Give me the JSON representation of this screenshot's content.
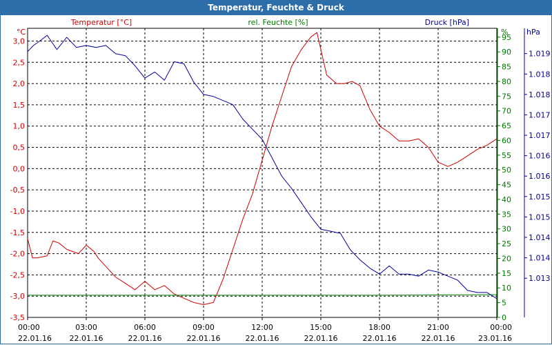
{
  "window": {
    "title": "Temperatur, Feuchte & Druck"
  },
  "chart_data": {
    "type": "line",
    "title": "Temperatur, Feuchte & Druck",
    "colors": {
      "temperature": "#cc0000",
      "humidity": "#007700",
      "pressure": "#000099",
      "grid": "#000000"
    },
    "x_ticks": [
      {
        "time": "00:00",
        "date": "22.01.16"
      },
      {
        "time": "03:00",
        "date": "22.01.16"
      },
      {
        "time": "06:00",
        "date": "22.01.16"
      },
      {
        "time": "09:00",
        "date": "22.01.16"
      },
      {
        "time": "12:00",
        "date": "22.01.16"
      },
      {
        "time": "15:00",
        "date": "22.01.16"
      },
      {
        "time": "18:00",
        "date": "22.01.16"
      },
      {
        "time": "21:00",
        "date": "22.01.16"
      },
      {
        "time": "00:00",
        "date": "23.01.16"
      }
    ],
    "xlim": [
      0,
      24
    ],
    "axes": {
      "temperature": {
        "label": "Temperatur [°C]",
        "unit": "°C",
        "ylim": [
          -3.5,
          3.3
        ],
        "ticks": [
          "3,0",
          "2,5",
          "2,0",
          "1,5",
          "1,0",
          "0,5",
          "0,0",
          "-0,5",
          "-1,0",
          "-1,5",
          "-2,0",
          "-2,5",
          "-3,0",
          "-3,5"
        ],
        "tick_values": [
          3.0,
          2.5,
          2.0,
          1.5,
          1.0,
          0.5,
          0.0,
          -0.5,
          -1.0,
          -1.5,
          -2.0,
          -2.5,
          -3.0,
          -3.5
        ]
      },
      "humidity": {
        "label": "rel. Feuchte [%]",
        "unit": "%",
        "ylim": [
          0,
          98
        ],
        "ticks": [
          "95",
          "90",
          "85",
          "80",
          "75",
          "70",
          "65",
          "60",
          "55",
          "50",
          "45",
          "40",
          "35",
          "30",
          "25",
          "20",
          "15",
          "10",
          "5",
          "0"
        ],
        "tick_values": [
          95,
          90,
          85,
          80,
          75,
          70,
          65,
          60,
          55,
          50,
          45,
          40,
          35,
          30,
          25,
          20,
          15,
          10,
          5,
          0
        ]
      },
      "pressure": {
        "label": "Druck [hPa]",
        "unit": "hPa",
        "ylim": [
          1012.54,
          1019.62
        ],
        "ticks": [
          "1.019",
          "1.018",
          "1.018",
          "1.017",
          "1.017",
          "1.016",
          "1.016",
          "1.015",
          "1.015",
          "1.014",
          "1.014",
          "1.013"
        ],
        "tick_values": [
          1019.0,
          1018.5,
          1018.0,
          1017.5,
          1017.0,
          1016.5,
          1016.0,
          1015.5,
          1015.0,
          1014.5,
          1014.0,
          1013.5
        ]
      }
    },
    "series": [
      {
        "name": "Temperatur",
        "axis": "temperature",
        "x": [
          0,
          0.25,
          0.5,
          1.0,
          1.3,
          1.6,
          2.0,
          2.3,
          2.6,
          3.0,
          3.4,
          3.6,
          4.0,
          4.5,
          5.0,
          5.5,
          6.0,
          6.5,
          7.0,
          7.5,
          8.0,
          8.5,
          9.0,
          9.5,
          10.0,
          10.5,
          11.0,
          11.5,
          12.0,
          12.5,
          13.0,
          13.5,
          14.0,
          14.5,
          14.8,
          15.0,
          15.3,
          15.8,
          16.2,
          16.6,
          17.0,
          17.5,
          18.0,
          18.5,
          19.0,
          19.5,
          20.0,
          20.5,
          21.0,
          21.5,
          22.0,
          22.5,
          23.0,
          23.5,
          24.0
        ],
        "values": [
          -1.65,
          -2.1,
          -2.1,
          -2.05,
          -1.7,
          -1.75,
          -1.9,
          -1.95,
          -2.0,
          -1.8,
          -1.95,
          -2.1,
          -2.3,
          -2.55,
          -2.7,
          -2.85,
          -2.65,
          -2.85,
          -2.75,
          -2.95,
          -3.05,
          -3.15,
          -3.2,
          -3.15,
          -2.6,
          -1.9,
          -1.2,
          -0.6,
          0.2,
          1.0,
          1.7,
          2.4,
          2.8,
          3.1,
          3.2,
          2.8,
          2.2,
          2.0,
          2.0,
          2.05,
          1.95,
          1.4,
          1.0,
          0.85,
          0.65,
          0.65,
          0.7,
          0.5,
          0.15,
          0.05,
          0.15,
          0.3,
          0.45,
          0.55,
          0.7
        ]
      },
      {
        "name": "rel. Feuchte",
        "axis": "humidity",
        "x": [
          0,
          6,
          12,
          18,
          24
        ],
        "values": [
          7.5,
          7.5,
          7.5,
          7.5,
          7.7
        ]
      },
      {
        "name": "Druck",
        "axis": "pressure",
        "x": [
          0,
          0.3,
          0.6,
          1.0,
          1.5,
          2.0,
          2.5,
          3.0,
          3.5,
          4.0,
          4.5,
          5.0,
          5.5,
          6.0,
          6.5,
          7.0,
          7.5,
          8.0,
          8.5,
          9.0,
          9.5,
          10.0,
          10.5,
          11.0,
          11.5,
          12.0,
          12.5,
          13.0,
          13.5,
          14.0,
          14.5,
          15.0,
          15.5,
          16.0,
          16.5,
          17.0,
          17.5,
          18.0,
          18.5,
          19.0,
          19.5,
          20.0,
          20.5,
          21.0,
          21.5,
          22.0,
          22.5,
          23.0,
          23.5,
          24.0
        ],
        "values": [
          1019.05,
          1019.2,
          1019.3,
          1019.45,
          1019.1,
          1019.4,
          1019.15,
          1019.2,
          1019.15,
          1019.2,
          1019.0,
          1018.95,
          1018.7,
          1018.4,
          1018.55,
          1018.35,
          1018.8,
          1018.75,
          1018.3,
          1018.0,
          1017.95,
          1017.85,
          1017.75,
          1017.4,
          1017.15,
          1016.9,
          1016.45,
          1016.0,
          1015.7,
          1015.35,
          1015.0,
          1014.7,
          1014.65,
          1014.6,
          1014.2,
          1013.95,
          1013.75,
          1013.6,
          1013.8,
          1013.6,
          1013.6,
          1013.55,
          1013.7,
          1013.65,
          1013.55,
          1013.45,
          1013.2,
          1013.15,
          1013.15,
          1013.0
        ]
      }
    ]
  }
}
